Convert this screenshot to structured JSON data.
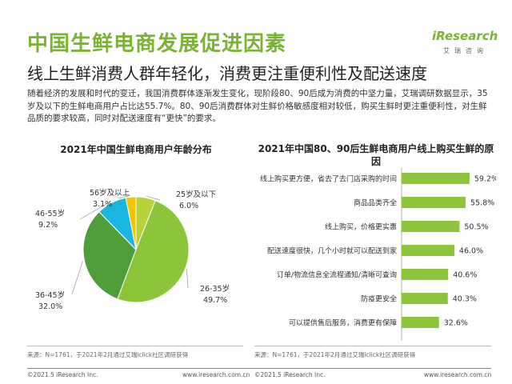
{
  "header": {
    "title": "中国生鲜电商发展促进因素",
    "subtitle": "线上生鲜消费人群年轻化，消费更注重便利性及配送速度",
    "logo_main": "iResearch",
    "logo_sub": "艾瑞咨询"
  },
  "body_text": "随着经济的发展和时代的变迁，我国消费群体逐渐发生变化，现阶段80、90后成为消费的中坚力量，艾瑞调研数据显示，35岁及以下的生鲜电商用户占比达55.7%。80、90后消费群体对生鲜价格敏感度相对较低，购买生鲜时更注重便利性，对生鲜品质的要求较高，同时对配送速度有“更快”的要求。",
  "colors": {
    "accent": "#7ab432",
    "pie": [
      "#b6d33c",
      "#8cc43a",
      "#4f9e3a",
      "#1ab5e0",
      "#f5c400"
    ],
    "bar": "#8cc43a"
  },
  "chart_data": [
    {
      "type": "pie",
      "title": "2021年中国生鲜电商用户年龄分布",
      "slices": [
        {
          "label": "25岁及以下",
          "value": 6.0,
          "display": "6.0%"
        },
        {
          "label": "26-35岁",
          "value": 49.7,
          "display": "49.7%"
        },
        {
          "label": "36-45岁",
          "value": 32.0,
          "display": "32.0%"
        },
        {
          "label": "46-55岁",
          "value": 9.2,
          "display": "9.2%"
        },
        {
          "label": "56岁及以上",
          "value": 3.1,
          "display": "3.1%"
        }
      ]
    },
    {
      "type": "bar",
      "orientation": "horizontal",
      "title": "2021年中国80、90后生鲜电商用户线上购买生鲜的原因",
      "categories": [
        "线上购买更方便，省去了去门店采购的时间",
        "商品品类齐全",
        "线上购买，价格更实惠",
        "配送速度很快，几个小时就可以配送到家",
        "订单/物流信息全流程通知/清晰可查询",
        "防疫更安全",
        "可以提供售后服务，消费更有保障"
      ],
      "values": [
        59.2,
        55.8,
        50.5,
        46.0,
        40.6,
        40.3,
        32.6
      ],
      "value_labels": [
        "59.2%",
        "55.8%",
        "50.5%",
        "46.0%",
        "40.6%",
        "40.3%",
        "32.6%"
      ]
    }
  ],
  "sources": {
    "left": "来源：N=1761，于2021年2月通过艾瑞iclick社区调研获得",
    "right": "来源：N=1761，于2021年2月通过艾瑞iclick社区调研获得"
  },
  "footer": {
    "copyright_left": "©2021.5 iResearch Inc.",
    "site_left": "www.iresearch.com.cn",
    "copyright_right": "©2021.5 iResearch Inc.",
    "site_right": "www.iresearch.com.cn"
  }
}
